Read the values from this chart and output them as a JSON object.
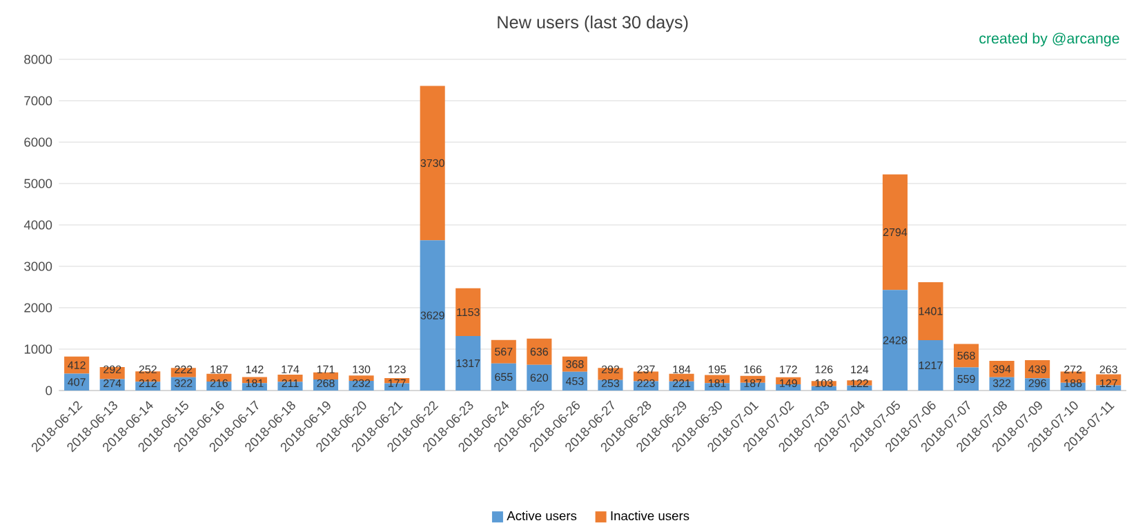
{
  "chart_data": {
    "type": "bar",
    "title": "New users (last 30 days)",
    "annotations": [
      "created by @arcange"
    ],
    "categories": [
      "2018-06-12",
      "2018-06-13",
      "2018-06-14",
      "2018-06-15",
      "2018-06-16",
      "2018-06-17",
      "2018-06-18",
      "2018-06-19",
      "2018-06-20",
      "2018-06-21",
      "2018-06-22",
      "2018-06-23",
      "2018-06-24",
      "2018-06-25",
      "2018-06-26",
      "2018-06-27",
      "2018-06-28",
      "2018-06-29",
      "2018-06-30",
      "2018-07-01",
      "2018-07-02",
      "2018-07-03",
      "2018-07-04",
      "2018-07-05",
      "2018-07-06",
      "2018-07-07",
      "2018-07-08",
      "2018-07-09",
      "2018-07-10",
      "2018-07-11"
    ],
    "series": [
      {
        "name": "Active users",
        "color": "#5b9bd5",
        "values": [
          407,
          274,
          212,
          322,
          216,
          181,
          211,
          268,
          232,
          177,
          3629,
          1317,
          655,
          620,
          453,
          253,
          223,
          221,
          181,
          187,
          149,
          103,
          122,
          2428,
          1217,
          559,
          322,
          296,
          188,
          127
        ]
      },
      {
        "name": "Inactive users",
        "color": "#ed7d31",
        "values": [
          412,
          292,
          252,
          222,
          187,
          142,
          174,
          171,
          130,
          123,
          3730,
          1153,
          567,
          636,
          368,
          292,
          237,
          184,
          195,
          166,
          172,
          126,
          124,
          2794,
          1401,
          568,
          394,
          439,
          272,
          263
        ]
      }
    ],
    "stacked": true,
    "data_labels": true,
    "ylim": [
      0,
      8000
    ],
    "yticks": [
      0,
      1000,
      2000,
      3000,
      4000,
      5000,
      6000,
      7000,
      8000
    ],
    "grid": "y",
    "legend": "bottom"
  }
}
